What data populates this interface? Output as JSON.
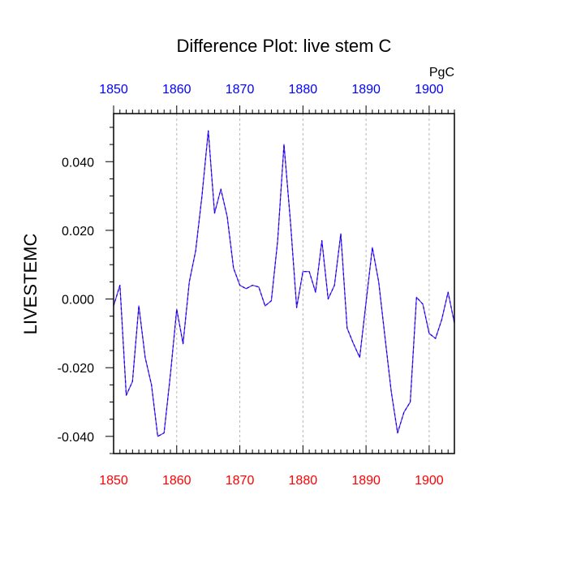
{
  "chart_data": {
    "type": "line",
    "title": "Difference Plot: live stem C",
    "ylabel": "LIVESTEMC",
    "units": "PgC",
    "xlim": [
      1850,
      1904
    ],
    "ylim": [
      -0.045,
      0.054
    ],
    "x_ticks": [
      1850,
      1860,
      1870,
      1880,
      1890,
      1900
    ],
    "x_tick_labels": [
      "1850",
      "1860",
      "1870",
      "1880",
      "1890",
      "1900"
    ],
    "y_ticks": [
      -0.04,
      -0.02,
      0.0,
      0.02,
      0.04
    ],
    "y_tick_labels": [
      "-0.040",
      "-0.020",
      "0.000",
      "0.020",
      "0.040"
    ],
    "vertical_grid": true,
    "top_axis_color": "#0000ff",
    "bottom_axis_color": "#ff0000",
    "series": [
      {
        "line_color": "#6a2bd9",
        "dash_color": "#0000ff",
        "x": [
          1850,
          1851,
          1852,
          1853,
          1854,
          1855,
          1856,
          1857,
          1858,
          1859,
          1860,
          1861,
          1862,
          1863,
          1864,
          1865,
          1866,
          1867,
          1868,
          1869,
          1870,
          1871,
          1872,
          1873,
          1874,
          1875,
          1876,
          1877,
          1878,
          1879,
          1880,
          1881,
          1882,
          1883,
          1884,
          1885,
          1886,
          1887,
          1888,
          1889,
          1890,
          1891,
          1892,
          1893,
          1894,
          1895,
          1896,
          1897,
          1898,
          1899,
          1900,
          1901,
          1902,
          1903,
          1904
        ],
        "values": [
          -0.002,
          0.004,
          -0.028,
          -0.024,
          -0.002,
          -0.017,
          -0.025,
          -0.04,
          -0.039,
          -0.022,
          -0.003,
          -0.013,
          0.005,
          0.014,
          0.03,
          0.049,
          0.025,
          0.032,
          0.024,
          0.009,
          0.004,
          0.003,
          0.004,
          0.0035,
          -0.002,
          -0.0005,
          0.017,
          0.045,
          0.023,
          -0.0025,
          0.008,
          0.008,
          0.002,
          0.017,
          0.0,
          0.004,
          0.019,
          -0.0085,
          -0.013,
          -0.017,
          -0.001,
          0.015,
          0.005,
          -0.011,
          -0.027,
          -0.039,
          -0.033,
          -0.03,
          0.0005,
          -0.0015,
          -0.01,
          -0.0115,
          -0.006,
          0.002,
          -0.007
        ]
      }
    ]
  }
}
